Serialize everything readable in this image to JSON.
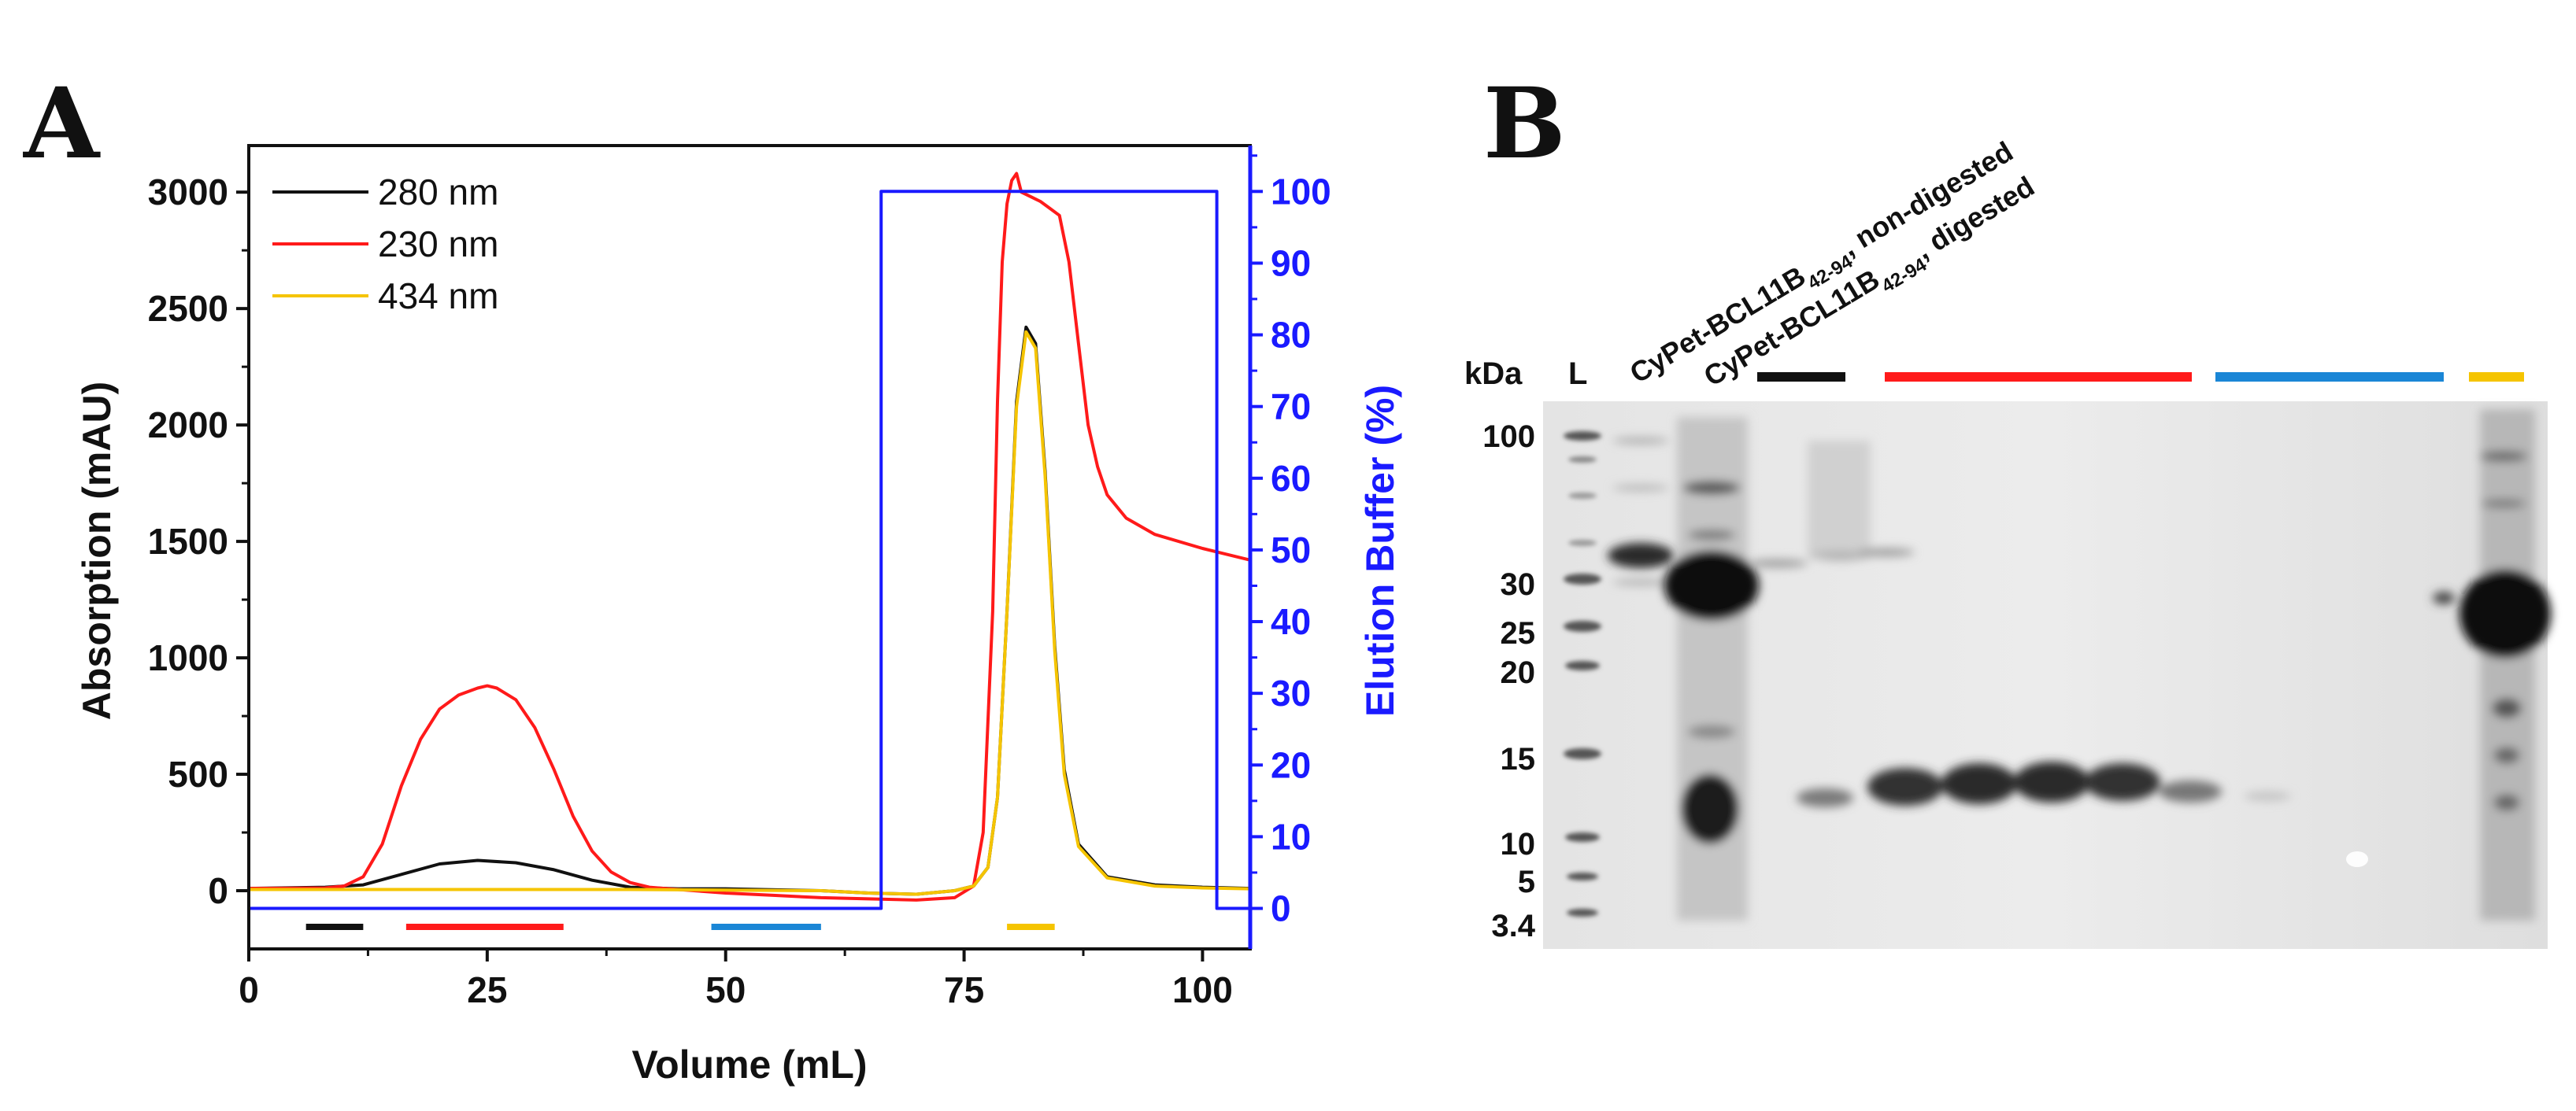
{
  "panel_a": {
    "letter": "A",
    "chart_data": {
      "type": "line",
      "title": "",
      "xlabel": "Volume (mL)",
      "ylabel": "Absorption (mAU)",
      "ylabel_right": "Elution Buffer (%)",
      "xlim": [
        0,
        105
      ],
      "ylim": [
        -250,
        3200
      ],
      "ylim_right": [
        -5.65,
        106.4
      ],
      "xticks": [
        "0",
        "25",
        "50",
        "75",
        "100"
      ],
      "yticks": [
        "0",
        "500",
        "1000",
        "1500",
        "2000",
        "2500",
        "3000"
      ],
      "yticks_right": [
        "0",
        "10",
        "20",
        "30",
        "40",
        "50",
        "60",
        "70",
        "80",
        "90",
        "100"
      ],
      "legend_position": "top-left",
      "series": [
        {
          "name": "280 nm",
          "color": "#111111",
          "axis": "left",
          "x": [
            0,
            8,
            12,
            16,
            20,
            24,
            28,
            32,
            36,
            40,
            45,
            50,
            60,
            65,
            70,
            74,
            76,
            77.5,
            78.5,
            79.5,
            80.5,
            81.5,
            82.5,
            83.5,
            84.5,
            85.5,
            87,
            90,
            95,
            100,
            105
          ],
          "y": [
            10,
            15,
            25,
            70,
            115,
            130,
            120,
            90,
            45,
            15,
            8,
            8,
            0,
            -10,
            -15,
            0,
            20,
            100,
            400,
            1200,
            2100,
            2420,
            2350,
            1800,
            1050,
            520,
            200,
            60,
            25,
            15,
            10
          ]
        },
        {
          "name": "230 nm",
          "color": "#ff1a1a",
          "axis": "left",
          "x": [
            0,
            8,
            10,
            12,
            14,
            16,
            18,
            20,
            22,
            24,
            25,
            26,
            28,
            30,
            32,
            34,
            36,
            38,
            40,
            42,
            45,
            50,
            55,
            60,
            65,
            70,
            74,
            76,
            77,
            78,
            78.5,
            79,
            79.5,
            80,
            80.5,
            81,
            82,
            83,
            84,
            85,
            86,
            87,
            88,
            89,
            90,
            92,
            95,
            100,
            102,
            105
          ],
          "y": [
            10,
            12,
            20,
            60,
            200,
            450,
            650,
            780,
            840,
            870,
            880,
            870,
            820,
            700,
            520,
            320,
            170,
            80,
            35,
            15,
            5,
            -10,
            -20,
            -30,
            -35,
            -40,
            -30,
            20,
            250,
            1200,
            2100,
            2700,
            2950,
            3050,
            3080,
            3000,
            2980,
            2960,
            2930,
            2900,
            2700,
            2350,
            2000,
            1820,
            1700,
            1600,
            1530,
            1470,
            1450,
            1420
          ]
        },
        {
          "name": "434 nm",
          "color": "#f5c400",
          "axis": "left",
          "x": [
            0,
            20,
            40,
            60,
            65,
            70,
            74,
            76,
            77.5,
            78.5,
            79.5,
            80.5,
            81.5,
            82.5,
            83.5,
            84.5,
            85.5,
            87,
            90,
            95,
            100,
            105
          ],
          "y": [
            5,
            5,
            5,
            0,
            -10,
            -15,
            0,
            20,
            100,
            400,
            1200,
            2080,
            2400,
            2330,
            1780,
            1030,
            500,
            190,
            55,
            20,
            12,
            8
          ]
        },
        {
          "name": "Elution Buffer",
          "color": "#1a1aff",
          "axis": "right",
          "x": [
            0,
            66.3,
            66.3,
            101.5,
            101.5,
            105
          ],
          "y": [
            0,
            0,
            100,
            100,
            0,
            0
          ]
        }
      ],
      "fraction_bars": [
        {
          "color": "#111111",
          "x_start": 6,
          "x_end": 12
        },
        {
          "color": "#ff1a1a",
          "x_start": 16.5,
          "x_end": 33
        },
        {
          "color": "#1a86d6",
          "x_start": 48.5,
          "x_end": 60
        },
        {
          "color": "#f5c400",
          "x_start": 79.5,
          "x_end": 84.5
        }
      ]
    }
  },
  "panel_b": {
    "letter": "B",
    "kda_label": "kDa",
    "ladder_lane_label": "L",
    "lane_labels": [
      {
        "main": "CyPet-BCL11B",
        "sub": "42-94",
        "suffix": ", non-digested"
      },
      {
        "main": "CyPet-BCL11B",
        "sub": "42-94",
        "suffix": ", digested"
      }
    ],
    "markers": [
      "100",
      "30",
      "25",
      "20",
      "15",
      "10",
      "5",
      "3.4"
    ],
    "fraction_bar_colors": [
      "#111111",
      "#ff1a1a",
      "#1a86d6",
      "#f5c400"
    ]
  }
}
